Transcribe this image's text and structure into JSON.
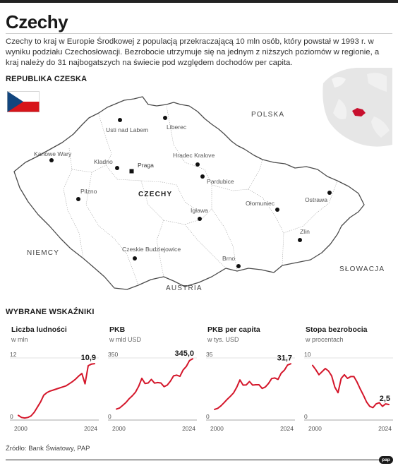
{
  "title": "Czechy",
  "intro": "Czechy to kraj w Europie Środkowej z populacją przekraczającą 10 mln osób, który powstał w 1993 r. w wyniku podziału Czechosłowacji. Bezrobocie utrzymuje się na jednym z niższych poziomów w regionie, a kraj należy do 31 najbogatszych na świecie pod względem dochodów per capita.",
  "map": {
    "heading": "REPUBLIKA CZESKA",
    "region_label": "CZECHY",
    "countries": [
      "POLSKA",
      "NIEMCY",
      "AUSTRIA",
      "SŁOWACJA"
    ],
    "capital": "Praga",
    "cities": [
      "Usti nad Labem",
      "Liberec",
      "Karlowe Wary",
      "Kladno",
      "Hradec Kralove",
      "Pardubice",
      "Pilzno",
      "Ostrawa",
      "Ołomuniec",
      "Igława",
      "Zlin",
      "Czeskie Budziejowice",
      "Brno"
    ],
    "colors": {
      "flag_white": "#ffffff",
      "flag_red": "#d7141a",
      "flag_blue": "#11457e",
      "highlight": "#c8102e"
    }
  },
  "indicators": {
    "heading": "WYBRANE WSKAŹNIKI",
    "line_color": "#d4162a"
  },
  "chart_data": [
    {
      "type": "line",
      "title": "Liczba ludności",
      "unit": "w mln",
      "x_start_label": "2000",
      "x_end_label": "2024",
      "y_top_label": "12",
      "y_bottom_label": "0",
      "last_value_label": "10,9",
      "ylim": [
        0,
        12
      ],
      "x": [
        2000,
        2001,
        2002,
        2003,
        2004,
        2005,
        2006,
        2007,
        2008,
        2009,
        2010,
        2011,
        2012,
        2013,
        2014,
        2015,
        2016,
        2017,
        2018,
        2019,
        2020,
        2021,
        2022,
        2023,
        2024
      ],
      "values": [
        0.9,
        0.5,
        0.4,
        0.5,
        0.8,
        1.5,
        2.5,
        3.5,
        4.8,
        5.3,
        5.6,
        5.8,
        6.0,
        6.2,
        6.4,
        6.6,
        7.0,
        7.4,
        7.9,
        8.5,
        9.0,
        7.0,
        10.5,
        10.8,
        10.9
      ]
    },
    {
      "type": "line",
      "title": "PKB",
      "unit": "w mld USD",
      "x_start_label": "2000",
      "x_end_label": "2024",
      "y_top_label": "350",
      "y_bottom_label": "0",
      "last_value_label": "345,0",
      "ylim": [
        0,
        350
      ],
      "x": [
        2000,
        2001,
        2002,
        2003,
        2004,
        2005,
        2006,
        2007,
        2008,
        2009,
        2010,
        2011,
        2012,
        2013,
        2014,
        2015,
        2016,
        2017,
        2018,
        2019,
        2020,
        2021,
        2022,
        2023,
        2024
      ],
      "values": [
        62,
        68,
        83,
        99,
        120,
        137,
        157,
        190,
        235,
        206,
        209,
        229,
        208,
        211,
        209,
        188,
        197,
        219,
        249,
        253,
        246,
        282,
        302,
        335,
        345
      ]
    },
    {
      "type": "line",
      "title": "PKB per capita",
      "unit": "w tys. USD",
      "x_start_label": "2000",
      "x_end_label": "2024",
      "y_top_label": "35",
      "y_bottom_label": "0",
      "last_value_label": "31,7",
      "ylim": [
        0,
        35
      ],
      "x": [
        2000,
        2001,
        2002,
        2003,
        2004,
        2005,
        2006,
        2007,
        2008,
        2009,
        2010,
        2011,
        2012,
        2013,
        2014,
        2015,
        2016,
        2017,
        2018,
        2019,
        2020,
        2021,
        2022,
        2023,
        2024
      ],
      "values": [
        6.0,
        6.6,
        8.0,
        9.8,
        11.7,
        13.4,
        15.3,
        18.5,
        22.6,
        19.7,
        19.8,
        21.7,
        19.7,
        19.9,
        19.9,
        17.8,
        18.6,
        20.6,
        23.4,
        23.7,
        22.9,
        26.4,
        28.1,
        31.0,
        31.7
      ]
    },
    {
      "type": "line",
      "title": "Stopa bezrobocia",
      "unit": "w procentach",
      "x_start_label": "2000",
      "x_end_label": "2024",
      "y_top_label": "10",
      "y_bottom_label": "0",
      "last_value_label": "2,5",
      "ylim": [
        0,
        10
      ],
      "x": [
        2000,
        2001,
        2002,
        2003,
        2004,
        2005,
        2006,
        2007,
        2008,
        2009,
        2010,
        2011,
        2012,
        2013,
        2014,
        2015,
        2016,
        2017,
        2018,
        2019,
        2020,
        2021,
        2022,
        2023,
        2024
      ],
      "values": [
        8.8,
        8.1,
        7.3,
        7.8,
        8.3,
        7.9,
        7.1,
        5.3,
        4.4,
        6.7,
        7.3,
        6.7,
        7.0,
        7.0,
        6.1,
        5.0,
        4.0,
        2.9,
        2.2,
        2.0,
        2.6,
        2.8,
        2.2,
        2.6,
        2.5
      ]
    }
  ],
  "source": "Źródło: Bank Światowy, PAP",
  "logo": "pap"
}
